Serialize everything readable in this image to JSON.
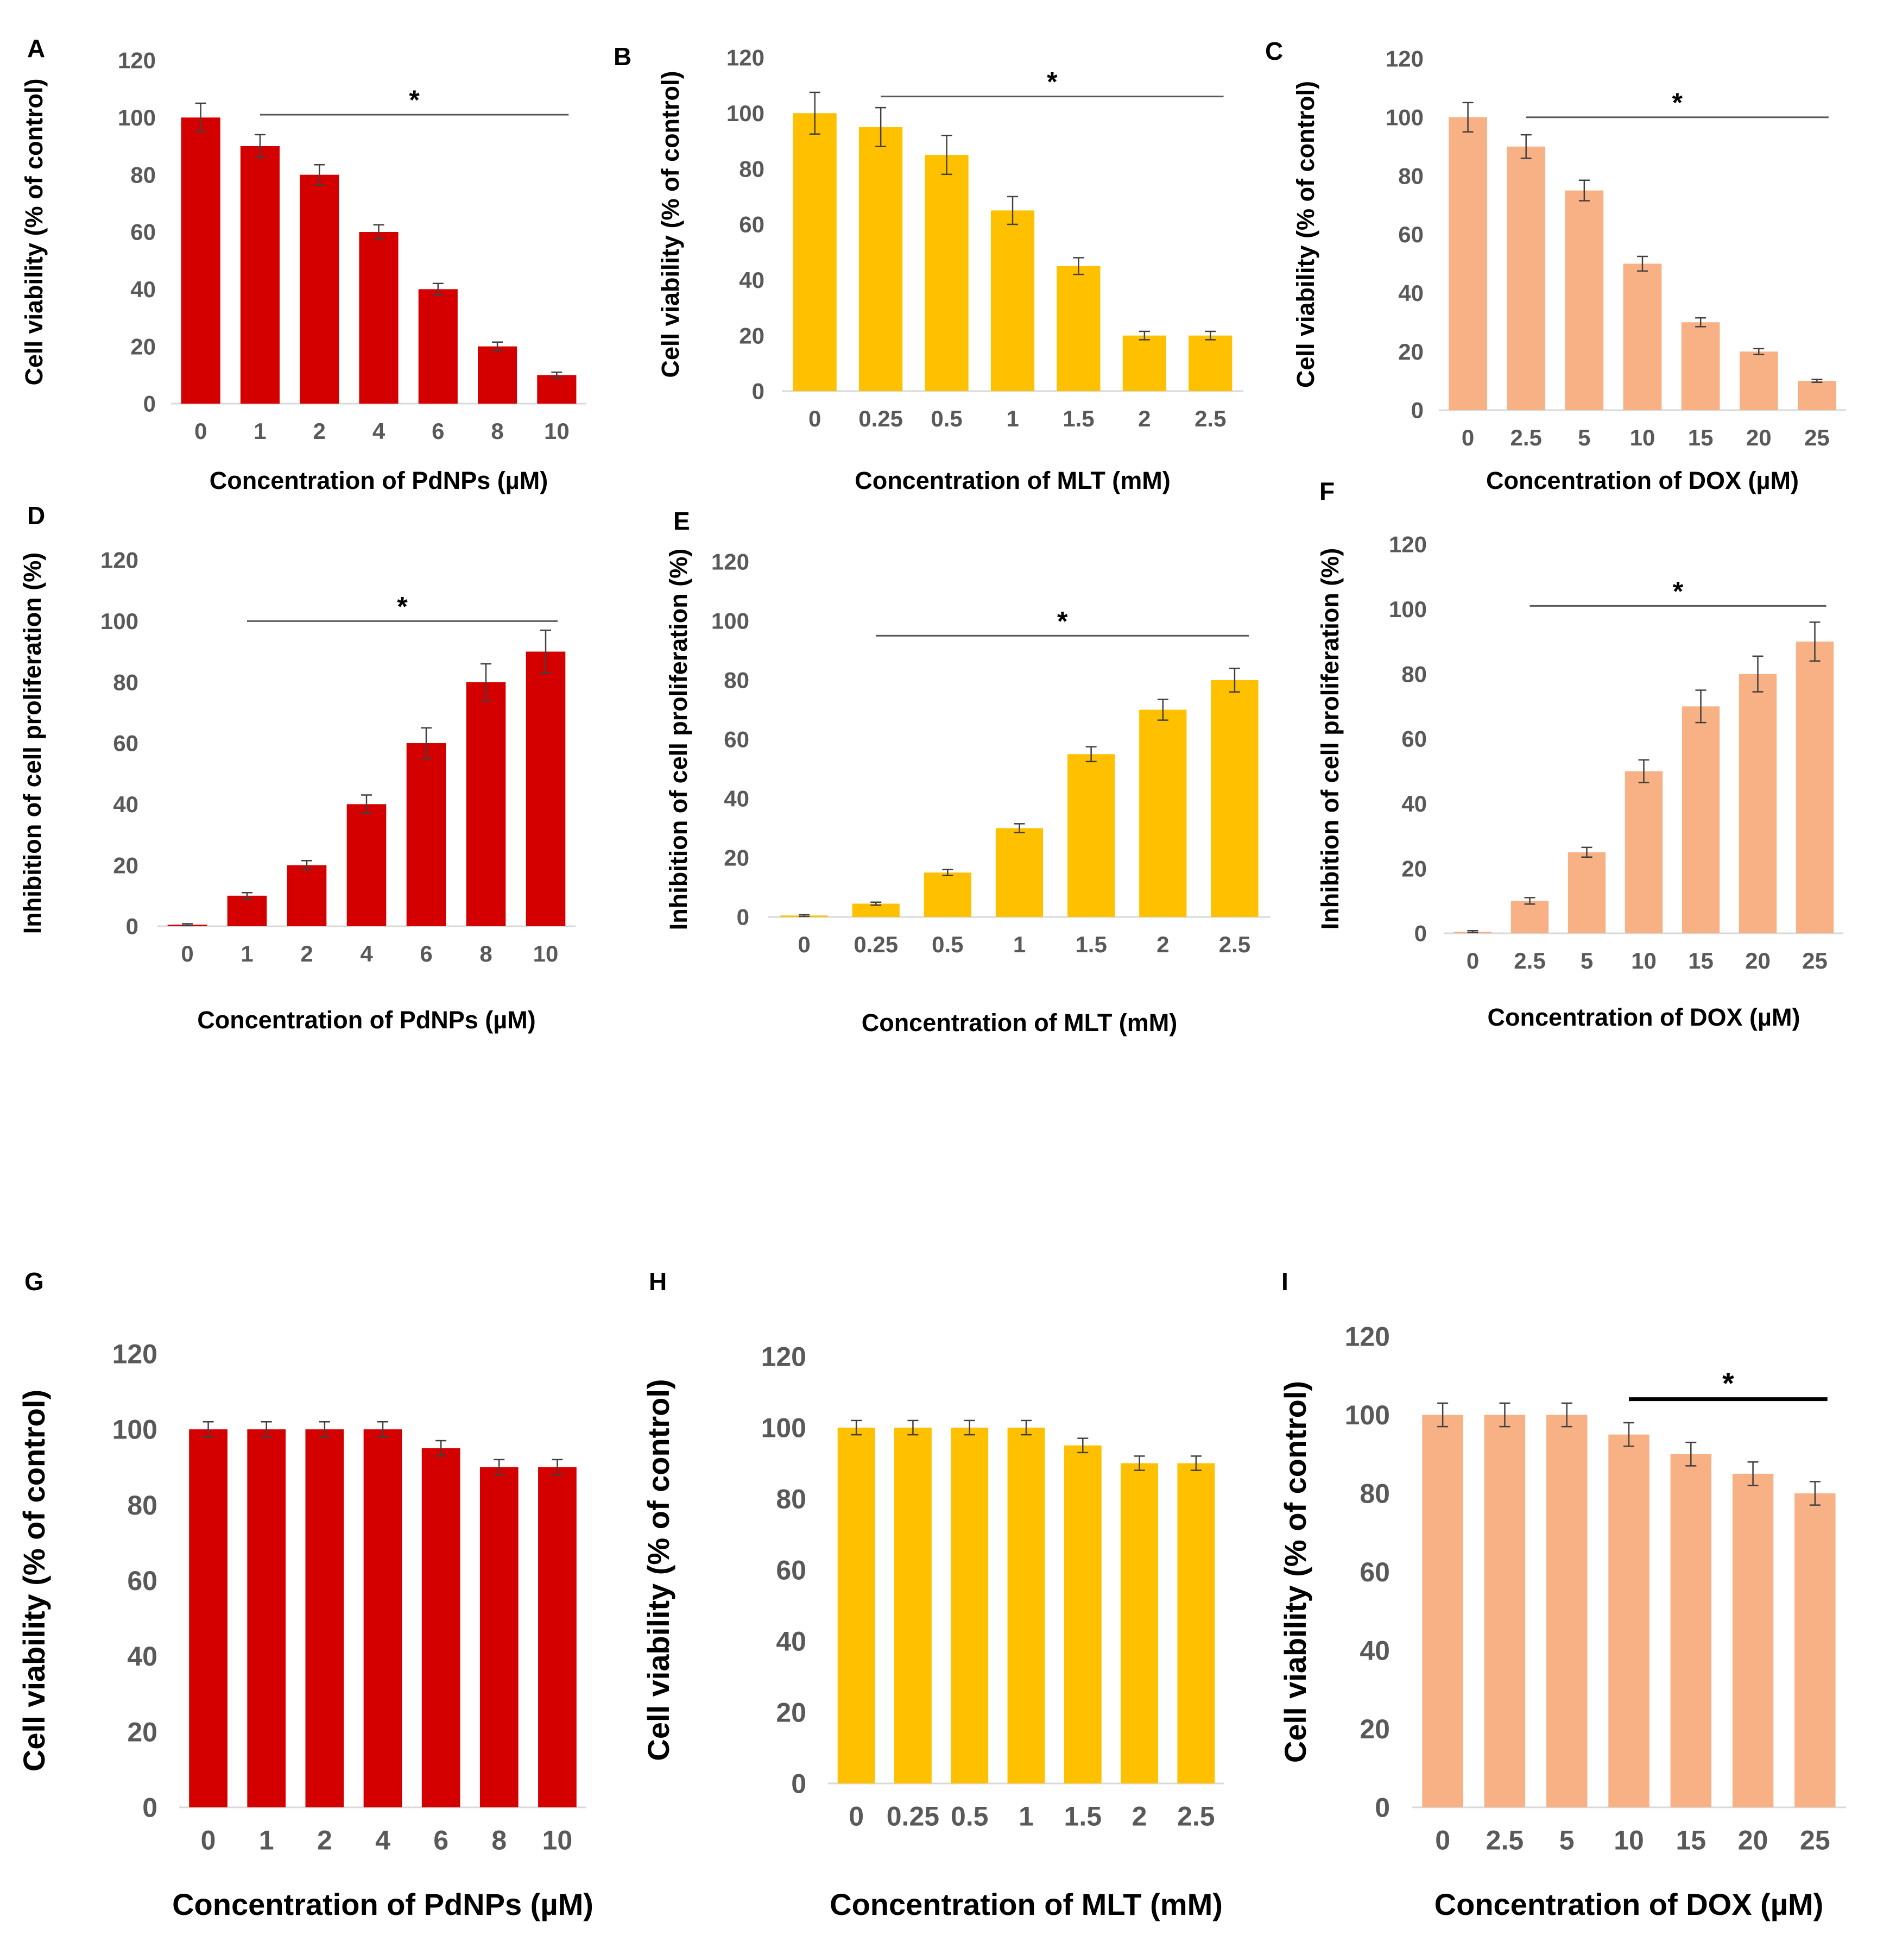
{
  "colors": {
    "PdNPs": "#d40000",
    "MLT": "#ffc000",
    "DOX": "#f8b185",
    "error_bar": "#404040",
    "sig_line": "#595959",
    "sig_line_bold": "#000000"
  },
  "chart_data": [
    {
      "id": "A",
      "letter": "A",
      "type": "bar",
      "agent": "PdNPs",
      "categories": [
        "0",
        "1",
        "2",
        "4",
        "6",
        "8",
        "10"
      ],
      "values": [
        100,
        90,
        80,
        60,
        40,
        20,
        10
      ],
      "errors": [
        5,
        4,
        3.5,
        2.5,
        2,
        1.5,
        1
      ],
      "xlabel": "Concentration of PdNPs (µM)",
      "ylabel": "Cell viability (% of control)",
      "ylim": [
        0,
        120
      ],
      "yticks": [
        0,
        20,
        40,
        60,
        80,
        100,
        120
      ],
      "significance": {
        "symbol": "*",
        "from": "1",
        "to": "10",
        "at": 101
      }
    },
    {
      "id": "B",
      "letter": "B",
      "type": "bar",
      "agent": "MLT",
      "categories": [
        "0",
        "0.25",
        "0.5",
        "1",
        "1.5",
        "2",
        "2.5"
      ],
      "values": [
        100,
        95,
        85,
        65,
        45,
        20,
        20
      ],
      "errors": [
        7.5,
        7,
        7,
        5,
        3,
        1.5,
        1.5
      ],
      "xlabel": "Concentration of MLT (mM)",
      "ylabel": "Cell viability (% of control)",
      "ylim": [
        0,
        120
      ],
      "yticks": [
        0,
        20,
        40,
        60,
        80,
        100,
        120
      ],
      "significance": {
        "symbol": "*",
        "from": "0.25",
        "to": "2.5",
        "at": 106
      }
    },
    {
      "id": "C",
      "letter": "C",
      "type": "bar",
      "agent": "DOX",
      "categories": [
        "0",
        "2.5",
        "5",
        "10",
        "15",
        "20",
        "25"
      ],
      "values": [
        100,
        90,
        75,
        50,
        30,
        20,
        10
      ],
      "errors": [
        5,
        4,
        3.5,
        2.5,
        1.5,
        1,
        0.5
      ],
      "xlabel": "Concentration of DOX (µM)",
      "ylabel": "Cell viability (% of control)",
      "ylim": [
        0,
        120
      ],
      "yticks": [
        0,
        20,
        40,
        60,
        80,
        100,
        120
      ],
      "significance": {
        "symbol": "*",
        "from": "2.5",
        "to": "25",
        "at": 100
      }
    },
    {
      "id": "D",
      "letter": "D",
      "type": "bar",
      "agent": "PdNPs",
      "categories": [
        "0",
        "1",
        "2",
        "4",
        "6",
        "8",
        "10"
      ],
      "values": [
        0.5,
        10,
        20,
        40,
        60,
        80,
        90
      ],
      "errors": [
        0.3,
        1,
        1.5,
        3,
        5,
        6,
        7
      ],
      "xlabel": "Concentration of PdNPs (µM)",
      "ylabel": "Inhibition of cell proliferation (%)",
      "ylim": [
        0,
        120
      ],
      "yticks": [
        0,
        20,
        40,
        60,
        80,
        100,
        120
      ],
      "significance": {
        "symbol": "*",
        "from": "1",
        "to": "10",
        "at": 100
      }
    },
    {
      "id": "E",
      "letter": "E",
      "type": "bar",
      "agent": "MLT",
      "categories": [
        "0",
        "0.25",
        "0.5",
        "1",
        "1.5",
        "2",
        "2.5"
      ],
      "values": [
        0.5,
        4.5,
        15,
        30,
        55,
        70,
        80
      ],
      "errors": [
        0.3,
        0.5,
        1,
        1.5,
        2.5,
        3.5,
        4
      ],
      "xlabel": "Concentration of MLT (mM)",
      "ylabel": "Inhibition of cell proliferation (%)",
      "ylim": [
        0,
        120
      ],
      "yticks": [
        0,
        20,
        40,
        60,
        80,
        100,
        120
      ],
      "significance": {
        "symbol": "*",
        "from": "0.25",
        "to": "2.5",
        "at": 95
      }
    },
    {
      "id": "F",
      "letter": "F",
      "type": "bar",
      "agent": "DOX",
      "categories": [
        "0",
        "2.5",
        "5",
        "10",
        "15",
        "20",
        "25"
      ],
      "values": [
        0.5,
        10,
        25,
        50,
        70,
        80,
        90
      ],
      "errors": [
        0.3,
        1,
        1.5,
        3.5,
        5,
        5.5,
        6
      ],
      "xlabel": "Concentration of DOX (µM)",
      "ylabel": "Inhibition of cell proliferation (%)",
      "ylim": [
        0,
        120
      ],
      "yticks": [
        0,
        20,
        40,
        60,
        80,
        100,
        120
      ],
      "significance": {
        "symbol": "*",
        "from": "2.5",
        "to": "25",
        "at": 101
      }
    },
    {
      "id": "G",
      "letter": "G",
      "type": "bar",
      "agent": "PdNPs",
      "categories": [
        "0",
        "1",
        "2",
        "4",
        "6",
        "8",
        "10"
      ],
      "values": [
        100,
        100,
        100,
        100,
        95,
        90,
        90
      ],
      "errors": [
        2,
        2,
        2,
        2,
        2,
        2,
        2
      ],
      "xlabel": "Concentration of PdNPs (µM)",
      "ylabel": "Cell viability (% of control)",
      "ylim": [
        0,
        120
      ],
      "yticks": [
        0,
        20,
        40,
        60,
        80,
        100,
        120
      ],
      "significance": null
    },
    {
      "id": "H",
      "letter": "H",
      "type": "bar",
      "agent": "MLT",
      "categories": [
        "0",
        "0.25",
        "0.5",
        "1",
        "1.5",
        "2",
        "2.5"
      ],
      "values": [
        100,
        100,
        100,
        100,
        95,
        90,
        90
      ],
      "errors": [
        2,
        2,
        2,
        2,
        2,
        2,
        2
      ],
      "xlabel": "Concentration of MLT (mM)",
      "ylabel": "Cell viability (% of control)",
      "ylim": [
        0,
        120
      ],
      "yticks": [
        0,
        20,
        40,
        60,
        80,
        100,
        120
      ],
      "significance": null
    },
    {
      "id": "I",
      "letter": "I",
      "type": "bar",
      "agent": "DOX",
      "categories": [
        "0",
        "2.5",
        "5",
        "10",
        "15",
        "20",
        "25"
      ],
      "values": [
        100,
        100,
        100,
        95,
        90,
        85,
        80
      ],
      "errors": [
        3,
        3,
        3,
        3,
        3,
        3,
        3
      ],
      "xlabel": "Concentration of DOX (µM)",
      "ylabel": "Cell viability (% of control)",
      "ylim": [
        0,
        120
      ],
      "yticks": [
        0,
        20,
        40,
        60,
        80,
        100,
        120
      ],
      "significance": {
        "symbol": "*",
        "from": "10",
        "to": "25",
        "at": 104,
        "bold": true
      }
    }
  ]
}
